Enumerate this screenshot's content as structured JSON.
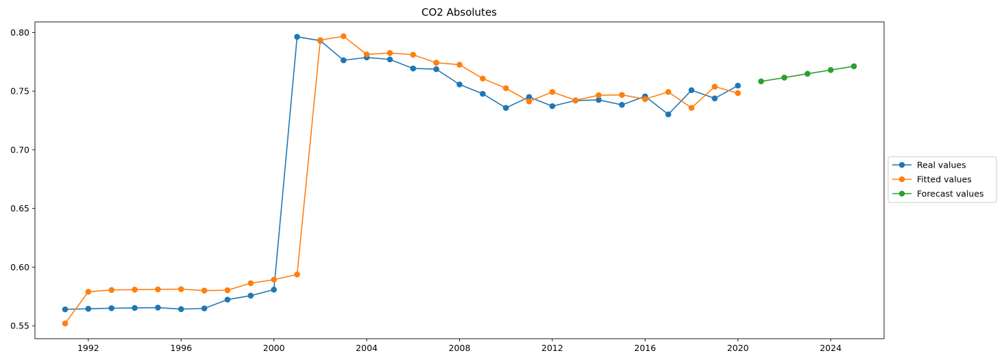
{
  "chart_data": {
    "type": "line",
    "title": "CO2 Absolutes",
    "xlabel": "",
    "ylabel": "",
    "xlim": [
      1989.7,
      2026.3
    ],
    "ylim": [
      0.539,
      0.809
    ],
    "x_ticks": [
      1992,
      1996,
      2000,
      2004,
      2008,
      2012,
      2016,
      2020,
      2024
    ],
    "y_ticks": [
      0.55,
      0.6,
      0.65,
      0.7,
      0.75,
      0.8
    ],
    "y_tick_labels": [
      "0.55",
      "0.60",
      "0.65",
      "0.70",
      "0.75",
      "0.80"
    ],
    "grid": false,
    "legend_position": "center-right outside",
    "series": [
      {
        "name": "Real values",
        "color": "#1f77b4",
        "x": [
          1991,
          1992,
          1993,
          1994,
          1995,
          1996,
          1997,
          1998,
          1999,
          2000,
          2001,
          2002,
          2003,
          2004,
          2005,
          2006,
          2007,
          2008,
          2009,
          2010,
          2011,
          2012,
          2013,
          2014,
          2015,
          2016,
          2017,
          2018,
          2019,
          2020
        ],
        "y": [
          0.564,
          0.5645,
          0.565,
          0.5652,
          0.5655,
          0.5642,
          0.5648,
          0.5723,
          0.5757,
          0.5808,
          0.7963,
          0.793,
          0.7763,
          0.7787,
          0.777,
          0.7693,
          0.7687,
          0.7557,
          0.7477,
          0.7357,
          0.745,
          0.7372,
          0.742,
          0.7425,
          0.7383,
          0.7455,
          0.7302,
          0.7508,
          0.7438,
          0.7547
        ]
      },
      {
        "name": "Fitted values",
        "color": "#ff7f0e",
        "x": [
          1991,
          1992,
          1993,
          1994,
          1995,
          1996,
          1997,
          1998,
          1999,
          2000,
          2001,
          2002,
          2003,
          2004,
          2005,
          2006,
          2007,
          2008,
          2009,
          2010,
          2011,
          2012,
          2013,
          2014,
          2015,
          2016,
          2017,
          2018,
          2019,
          2020
        ],
        "y": [
          0.552,
          0.579,
          0.5805,
          0.5808,
          0.581,
          0.5812,
          0.58,
          0.5803,
          0.5863,
          0.5893,
          0.5937,
          0.7935,
          0.7968,
          0.7813,
          0.7825,
          0.781,
          0.7742,
          0.7725,
          0.7607,
          0.7525,
          0.7412,
          0.7493,
          0.7422,
          0.7465,
          0.7468,
          0.7432,
          0.7493,
          0.7357,
          0.7538,
          0.7483
        ]
      },
      {
        "name": "Forecast values",
        "color": "#2ca02c",
        "x": [
          2021,
          2022,
          2023,
          2024,
          2025
        ],
        "y": [
          0.7583,
          0.7615,
          0.7648,
          0.768,
          0.7712
        ]
      }
    ]
  }
}
